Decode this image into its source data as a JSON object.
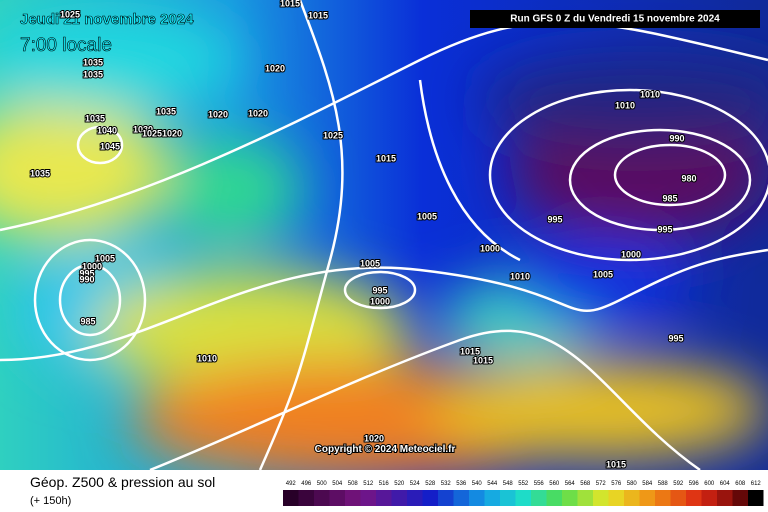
{
  "header": {
    "date": "Jeudi 21 novembre 2024",
    "time": "7:00 locale",
    "run": "Run GFS 0 Z du Vendredi 15 novembre 2024"
  },
  "copyright": "Copyright © 2024 Meteociel.fr",
  "footer": {
    "title": "Géop. Z500 & pression au sol",
    "subtitle": "(+ 150h)"
  },
  "colorbar": {
    "labels": [
      492,
      496,
      500,
      504,
      508,
      512,
      516,
      520,
      524,
      528,
      532,
      536,
      540,
      544,
      548,
      552,
      556,
      560,
      564,
      568,
      572,
      576,
      580,
      584,
      588,
      592,
      596,
      600,
      604,
      608,
      612
    ]
  },
  "isobars": {
    "labels": [
      "1025",
      "1015",
      "1015",
      "1035",
      "1035",
      "1020",
      "1035",
      "1020",
      "1020",
      "1035",
      "1040",
      "1030",
      "1025",
      "1020",
      "1045",
      "1025",
      "1010",
      "1010",
      "990",
      "980",
      "985",
      "1015",
      "1035",
      "1005",
      "995",
      "995",
      "1000",
      "1000",
      "1005",
      "1000",
      "995",
      "990",
      "1005",
      "1010",
      "1005",
      "995",
      "1000",
      "985",
      "995",
      "1010",
      "1015",
      "1015",
      "1020",
      "1015"
    ]
  }
}
